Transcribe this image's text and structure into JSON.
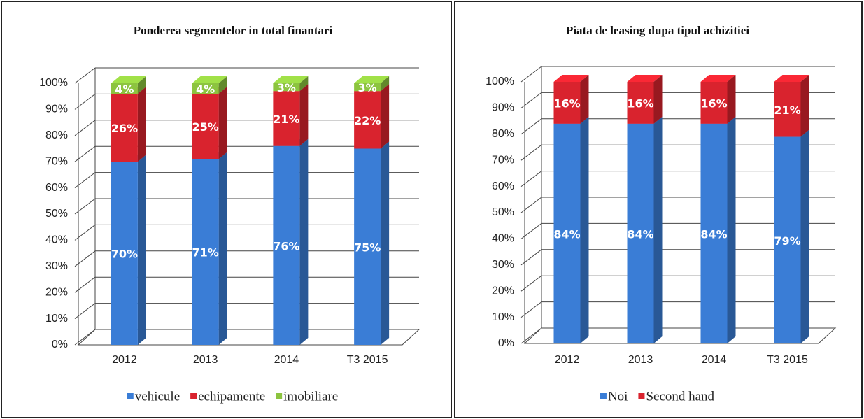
{
  "chart_data": [
    {
      "type": "bar3d-stacked",
      "title": "Ponderea segmentelor in total finantari",
      "categories": [
        "2012",
        "2013",
        "2014",
        "T3 2015"
      ],
      "series": [
        {
          "name": "vehicule",
          "color": "#3a7dd6",
          "values": [
            70,
            71,
            76,
            75
          ],
          "value_labels": [
            "70%",
            "71%",
            "76%",
            "75%"
          ]
        },
        {
          "name": "echipamente",
          "color": "#d9232e",
          "values": [
            26,
            25,
            21,
            22
          ],
          "value_labels": [
            "26%",
            "25%",
            "21%",
            "22%"
          ]
        },
        {
          "name": "imobiliare",
          "color": "#8cc43f",
          "values": [
            4,
            4,
            3,
            3
          ],
          "value_labels": [
            "4%",
            "4%",
            "3%",
            "3%"
          ]
        }
      ],
      "ylim": [
        0,
        100
      ],
      "yticks": [
        {
          "value": 0,
          "label": "0%"
        },
        {
          "value": 10,
          "label": "10%"
        },
        {
          "value": 20,
          "label": "20%"
        },
        {
          "value": 30,
          "label": "30%"
        },
        {
          "value": 40,
          "label": "40%"
        },
        {
          "value": 50,
          "label": "50%"
        },
        {
          "value": 60,
          "label": "60%"
        },
        {
          "value": 70,
          "label": "70%"
        },
        {
          "value": 80,
          "label": "80%"
        },
        {
          "value": 90,
          "label": "90%"
        },
        {
          "value": 100,
          "label": "100%"
        }
      ],
      "grid": true,
      "legend": "bottom"
    },
    {
      "type": "bar3d-stacked",
      "title": "Piata de leasing dupa tipul achizitiei",
      "categories": [
        "2012",
        "2013",
        "2014",
        "T3 2015"
      ],
      "series": [
        {
          "name": "Noi",
          "color": "#3a7dd6",
          "values": [
            84,
            84,
            84,
            79
          ],
          "value_labels": [
            "84%",
            "84%",
            "84%",
            "79%"
          ]
        },
        {
          "name": "Second hand",
          "color": "#d9232e",
          "values": [
            16,
            16,
            16,
            21
          ],
          "value_labels": [
            "16%",
            "16%",
            "16%",
            "21%"
          ]
        }
      ],
      "ylim": [
        0,
        100
      ],
      "yticks": [
        {
          "value": 0,
          "label": "0%"
        },
        {
          "value": 10,
          "label": "10%"
        },
        {
          "value": 20,
          "label": "20%"
        },
        {
          "value": 30,
          "label": "30%"
        },
        {
          "value": 40,
          "label": "40%"
        },
        {
          "value": 50,
          "label": "50%"
        },
        {
          "value": 60,
          "label": "60%"
        },
        {
          "value": 70,
          "label": "70%"
        },
        {
          "value": 80,
          "label": "80%"
        },
        {
          "value": 90,
          "label": "90%"
        },
        {
          "value": 100,
          "label": "100%"
        }
      ],
      "grid": true,
      "legend": "bottom"
    }
  ]
}
